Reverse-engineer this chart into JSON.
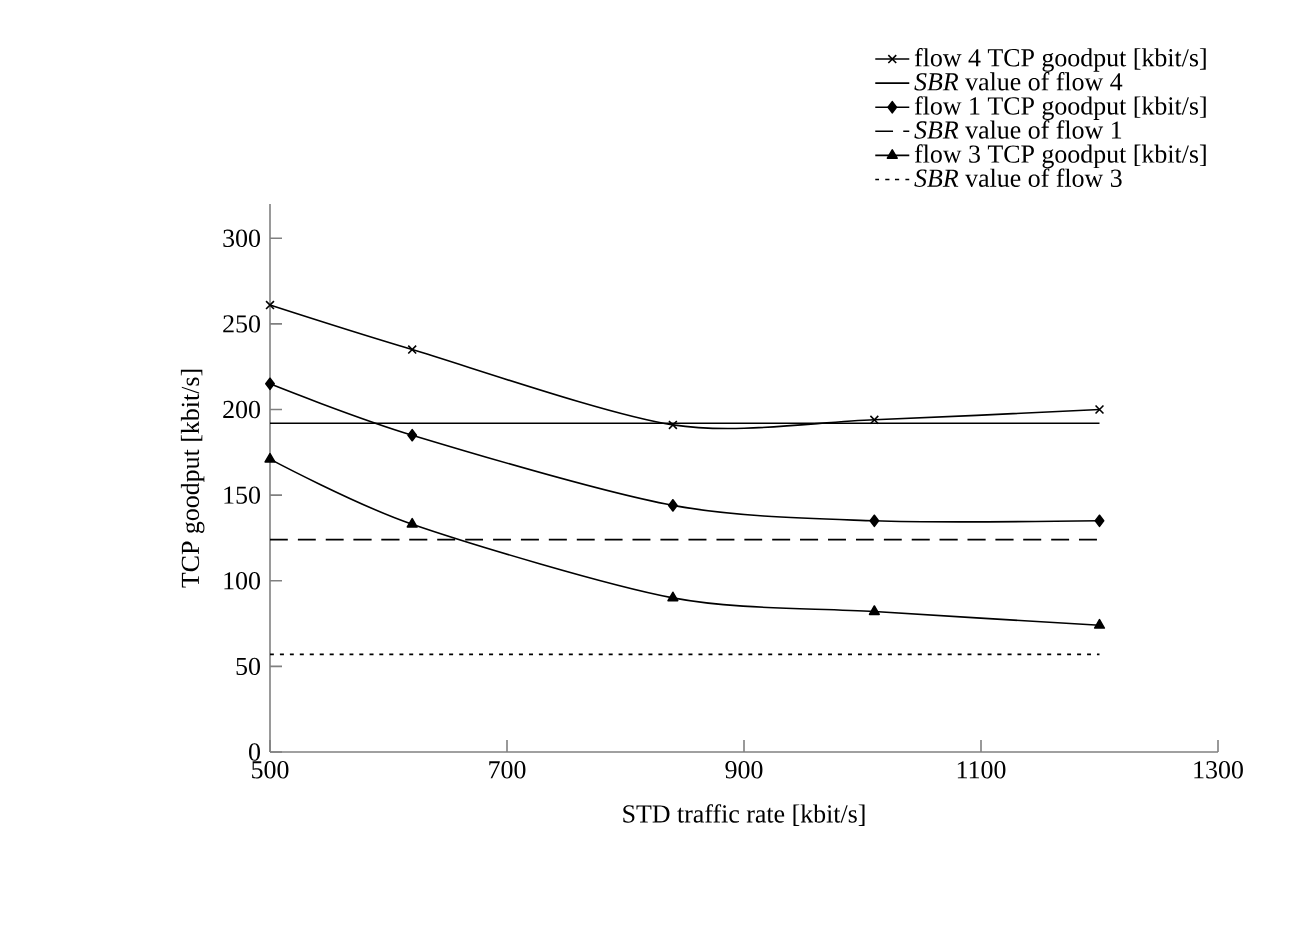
{
  "chart_data": {
    "type": "line",
    "xlabel": "STD traffic rate [kbit/s]",
    "ylabel": "TCP goodput [kbit/s]",
    "xlim": [
      500,
      1300
    ],
    "xticks": [
      500,
      700,
      900,
      1100,
      1300
    ],
    "ylim": [
      0,
      320
    ],
    "yticks": [
      0,
      50,
      100,
      150,
      200,
      250,
      300
    ],
    "legend": "top right",
    "grid": false,
    "series": [
      {
        "name": "flow 4 TCP goodput [kbit/s]",
        "color": "#000000",
        "marker": "cross",
        "line_style": "solid",
        "x": [
          500,
          620,
          840,
          1010,
          1200
        ],
        "values": [
          261,
          235,
          191,
          194,
          200
        ]
      },
      {
        "name": "*SBR* value of flow 4",
        "color": "#000000",
        "marker": "none",
        "line_style": "solid",
        "x": [
          500,
          1200
        ],
        "values": [
          192,
          192
        ]
      },
      {
        "name": "flow 1 TCP goodput [kbit/s]",
        "color": "#000000",
        "marker": "diamond",
        "line_style": "solid",
        "x": [
          500,
          620,
          840,
          1010,
          1200
        ],
        "values": [
          215,
          185,
          144,
          135,
          135
        ]
      },
      {
        "name": "*SBR* value of flow 1",
        "color": "#000000",
        "marker": "none",
        "line_style": "dashed",
        "x": [
          500,
          1200
        ],
        "values": [
          124,
          124
        ]
      },
      {
        "name": "flow 3 TCP goodput [kbit/s]",
        "color": "#000000",
        "marker": "triangle",
        "line_style": "solid",
        "x": [
          500,
          620,
          840,
          1010,
          1200
        ],
        "values": [
          171,
          133,
          90,
          82,
          74
        ]
      },
      {
        "name": "*SBR* value of flow 3",
        "color": "#000000",
        "marker": "none",
        "line_style": "dotted",
        "x": [
          500,
          1200
        ],
        "values": [
          57,
          57
        ]
      }
    ]
  }
}
